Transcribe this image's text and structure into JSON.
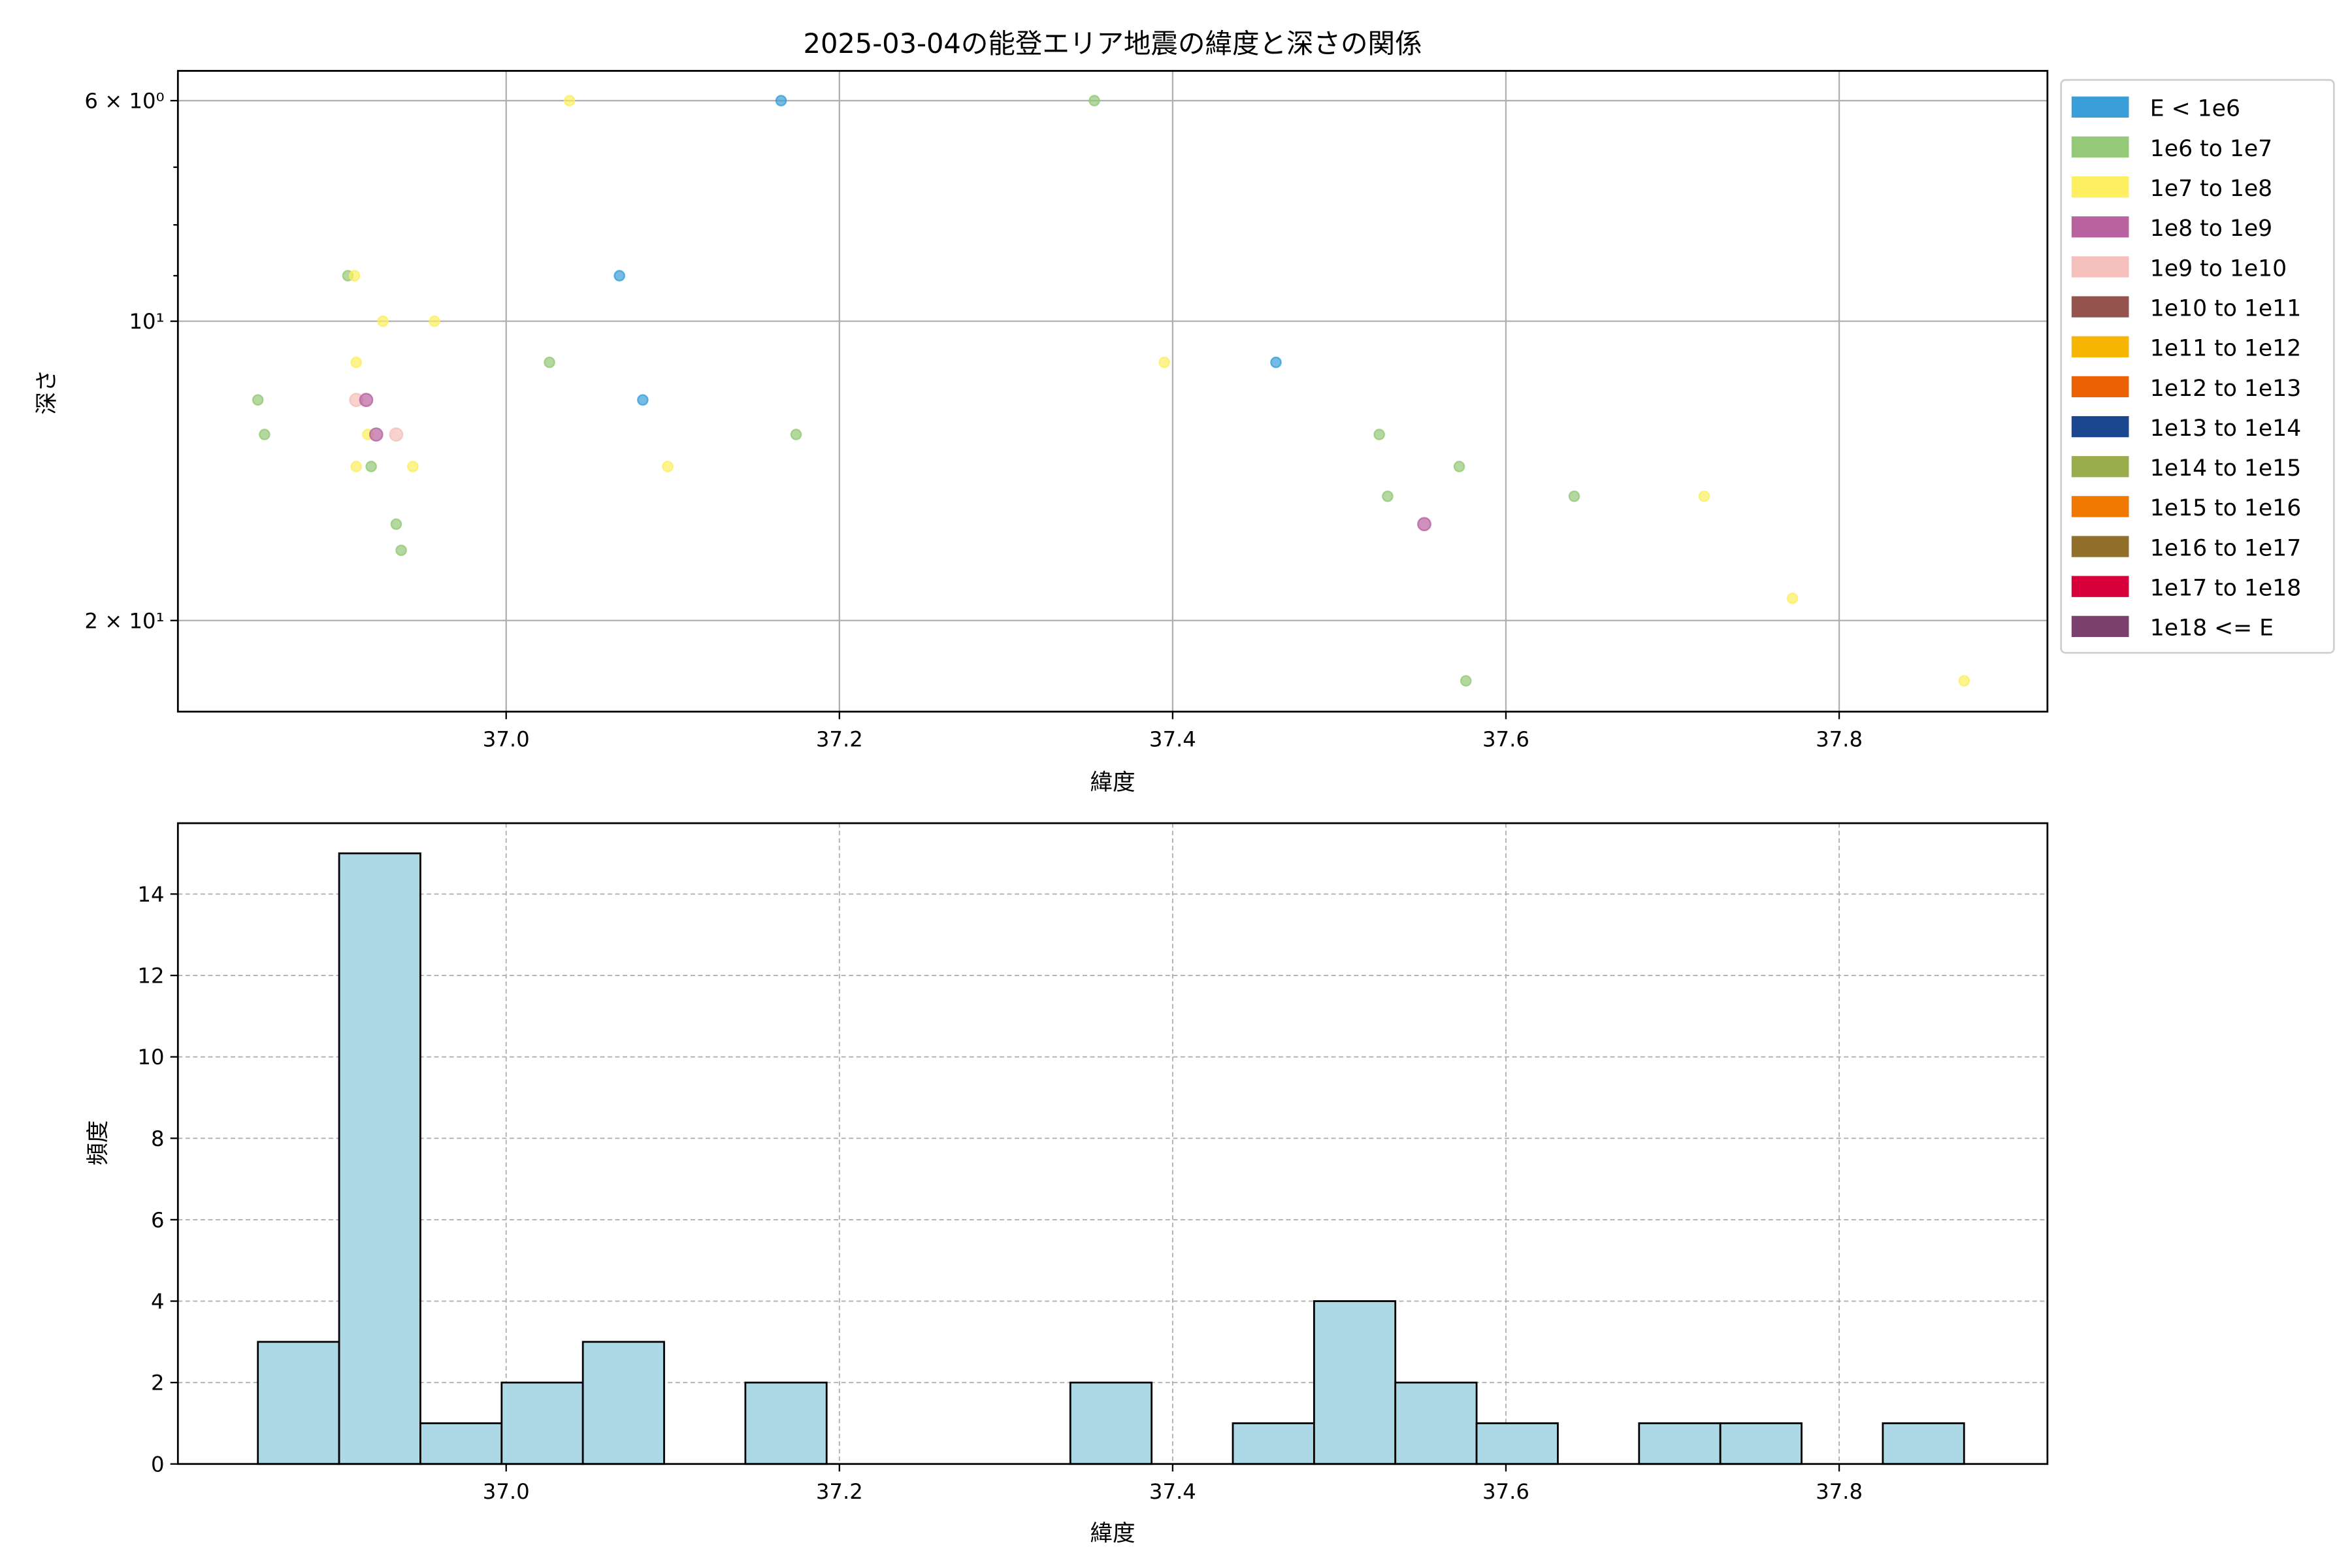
{
  "chart_data": [
    {
      "type": "scatter",
      "title": "2025-03-04の能登エリア地震の緯度と深さの関係",
      "xlabel": "緯度",
      "ylabel": "深さ",
      "xlim": [
        36.803,
        37.925
      ],
      "ylim": [
        24.7,
        5.6
      ],
      "yscale": "log",
      "y_inverted": true,
      "grid": true,
      "legend_placement": "outside-right-top",
      "xticks": [
        37.0,
        37.2,
        37.4,
        37.6,
        37.8
      ],
      "xtick_labels": [
        "37.0",
        "37.2",
        "37.4",
        "37.6",
        "37.8"
      ],
      "yticks": [
        {
          "value": 6,
          "label": "6 × 10⁰"
        },
        {
          "value": 10,
          "label": "10¹"
        },
        {
          "value": 20,
          "label": "2 × 10¹"
        }
      ],
      "legend": [
        {
          "label": "E < 1e6",
          "color": "#3a9fd9"
        },
        {
          "label": "1e6 to 1e7",
          "color": "#93c977"
        },
        {
          "label": "1e7 to 1e8",
          "color": "#fdef5f"
        },
        {
          "label": "1e8 to 1e9",
          "color": "#b962a0"
        },
        {
          "label": "1e9 to 1e10",
          "color": "#f5bfbb"
        },
        {
          "label": "1e10 to 1e11",
          "color": "#96524d"
        },
        {
          "label": "1e11 to 1e12",
          "color": "#f6b500"
        },
        {
          "label": "1e12 to 1e13",
          "color": "#eb6103"
        },
        {
          "label": "1e13 to 1e14",
          "color": "#1b4690"
        },
        {
          "label": "1e14 to 1e15",
          "color": "#9aad4c"
        },
        {
          "label": "1e15 to 1e16",
          "color": "#f07800"
        },
        {
          "label": "1e16 to 1e17",
          "color": "#91702c"
        },
        {
          "label": "1e17 to 1e18",
          "color": "#d8003a"
        },
        {
          "label": "1e18 <= E",
          "color": "#7b406e"
        }
      ],
      "points": [
        {
          "lat": 37.038,
          "depth": 6,
          "class": 2
        },
        {
          "lat": 37.165,
          "depth": 6,
          "class": 0
        },
        {
          "lat": 37.353,
          "depth": 6,
          "class": 1
        },
        {
          "lat": 36.905,
          "depth": 9,
          "class": 1
        },
        {
          "lat": 36.909,
          "depth": 9,
          "class": 2
        },
        {
          "lat": 37.068,
          "depth": 9,
          "class": 0
        },
        {
          "lat": 36.926,
          "depth": 10,
          "class": 2
        },
        {
          "lat": 36.957,
          "depth": 10,
          "class": 2
        },
        {
          "lat": 36.91,
          "depth": 11,
          "class": 2
        },
        {
          "lat": 37.026,
          "depth": 11,
          "class": 1
        },
        {
          "lat": 37.395,
          "depth": 11,
          "class": 2
        },
        {
          "lat": 37.462,
          "depth": 11,
          "class": 0
        },
        {
          "lat": 36.851,
          "depth": 12,
          "class": 1
        },
        {
          "lat": 36.91,
          "depth": 12,
          "class": 4
        },
        {
          "lat": 36.916,
          "depth": 12,
          "class": 3
        },
        {
          "lat": 37.082,
          "depth": 12,
          "class": 0
        },
        {
          "lat": 36.855,
          "depth": 13,
          "class": 1
        },
        {
          "lat": 36.917,
          "depth": 13,
          "class": 2
        },
        {
          "lat": 36.922,
          "depth": 13,
          "class": 3
        },
        {
          "lat": 36.934,
          "depth": 13,
          "class": 4
        },
        {
          "lat": 37.174,
          "depth": 13,
          "class": 1
        },
        {
          "lat": 37.524,
          "depth": 13,
          "class": 1
        },
        {
          "lat": 36.91,
          "depth": 14,
          "class": 2
        },
        {
          "lat": 36.919,
          "depth": 14,
          "class": 1
        },
        {
          "lat": 36.944,
          "depth": 14,
          "class": 2
        },
        {
          "lat": 37.097,
          "depth": 14,
          "class": 2
        },
        {
          "lat": 37.572,
          "depth": 14,
          "class": 1
        },
        {
          "lat": 37.529,
          "depth": 15,
          "class": 1
        },
        {
          "lat": 37.641,
          "depth": 15,
          "class": 1
        },
        {
          "lat": 37.719,
          "depth": 15,
          "class": 2
        },
        {
          "lat": 36.934,
          "depth": 16,
          "class": 1
        },
        {
          "lat": 37.551,
          "depth": 16,
          "class": 3
        },
        {
          "lat": 36.937,
          "depth": 17,
          "class": 1
        },
        {
          "lat": 37.772,
          "depth": 19,
          "class": 2
        },
        {
          "lat": 37.576,
          "depth": 23,
          "class": 1
        },
        {
          "lat": 37.875,
          "depth": 23,
          "class": 2
        }
      ]
    },
    {
      "type": "bar",
      "subtype": "histogram",
      "xlabel": "緯度",
      "ylabel": "頻度",
      "xlim": [
        36.803,
        37.925
      ],
      "ylim": [
        0,
        15.74
      ],
      "grid": true,
      "bar_color": "#add8e6",
      "edge_color": "#000000",
      "bin_start": 36.851,
      "bin_width": 0.04876,
      "counts": [
        3,
        15,
        1,
        2,
        3,
        0,
        2,
        0,
        0,
        0,
        2,
        0,
        1,
        4,
        2,
        1,
        0,
        1,
        1,
        0,
        1
      ],
      "xticks": [
        37.0,
        37.2,
        37.4,
        37.6,
        37.8
      ],
      "xtick_labels": [
        "37.0",
        "37.2",
        "37.4",
        "37.6",
        "37.8"
      ],
      "yticks": [
        0,
        2,
        4,
        6,
        8,
        10,
        12,
        14
      ],
      "ytick_labels": [
        "0",
        "2",
        "4",
        "6",
        "8",
        "10",
        "12",
        "14"
      ]
    }
  ]
}
